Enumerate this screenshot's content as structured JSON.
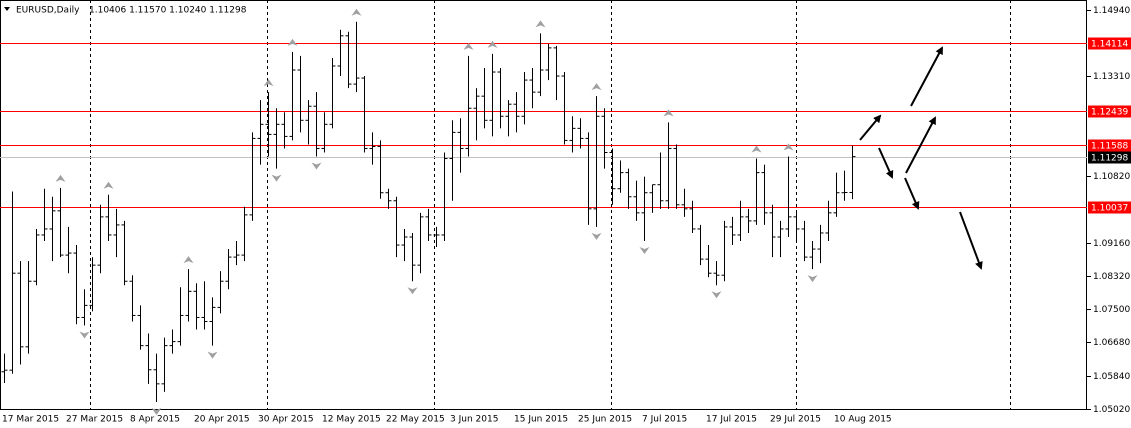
{
  "chart_data": {
    "type": "ohlc",
    "title": "EURUSD,Daily",
    "subtitle": "1.10406 1.11570 1.10240 1.11298",
    "categories": [
      "17 Mar 2015",
      null,
      null,
      null,
      null,
      null,
      null,
      null,
      "27 Mar 2015",
      null,
      null,
      null,
      null,
      null,
      null,
      null,
      "8 Apr 2015",
      null,
      null,
      null,
      null,
      null,
      null,
      null,
      "20 Apr 2015",
      null,
      null,
      null,
      null,
      null,
      null,
      null,
      "30 Apr 2015",
      null,
      null,
      null,
      null,
      null,
      null,
      null,
      "12 May 2015",
      null,
      null,
      null,
      null,
      null,
      null,
      null,
      "22 May 2015",
      null,
      null,
      null,
      null,
      null,
      null,
      null,
      "3 Jun 2015",
      null,
      null,
      null,
      null,
      null,
      null,
      null,
      "15 Jun 2015",
      null,
      null,
      null,
      null,
      null,
      null,
      null,
      "25 Jun 2015",
      null,
      null,
      null,
      null,
      null,
      null,
      null,
      "7 Jul 2015",
      null,
      null,
      null,
      null,
      null,
      null,
      null,
      "17 Jul 2015",
      null,
      null,
      null,
      null,
      null,
      null,
      null,
      "29 Jul 2015",
      null,
      null,
      null,
      null,
      null,
      null,
      null,
      "10 Aug 2015",
      null,
      null
    ],
    "open": [
      1.0595,
      1.0599,
      1.084,
      1.0657,
      1.082,
      1.0935,
      1.095,
      1.0995,
      1.0885,
      1.089,
      1.073,
      1.076,
      1.086,
      1.098,
      1.0935,
      1.096,
      1.082,
      1.0735,
      1.066,
      1.06,
      1.0565,
      1.066,
      1.067,
      1.0735,
      1.0795,
      1.073,
      1.072,
      1.0755,
      1.082,
      1.088,
      1.0885,
      1.0985,
      1.1175,
      1.121,
      1.1185,
      1.121,
      1.118,
      1.1345,
      1.122,
      1.1255,
      1.115,
      1.121,
      1.1355,
      1.143,
      1.131,
      1.1325,
      1.115,
      1.1155,
      1.104,
      1.102,
      1.091,
      1.093,
      1.086,
      1.098,
      1.0935,
      1.0935,
      1.1125,
      1.119,
      1.115,
      1.125,
      1.128,
      1.122,
      1.134,
      1.123,
      1.126,
      1.123,
      1.132,
      1.129,
      1.1345,
      1.14,
      1.133,
      1.117,
      1.12,
      1.1175,
      1.1,
      1.123,
      1.114,
      1.105,
      1.109,
      1.103,
      1.099,
      1.104,
      1.106,
      1.102,
      1.115,
      1.101,
      1.1,
      1.095,
      1.0875,
      1.084,
      1.0835,
      1.0955,
      1.0935,
      1.098,
      1.097,
      1.109,
      1.099,
      1.093,
      1.095,
      1.098,
      1.095,
      1.088,
      1.09,
      1.094,
      1.099,
      1.104,
      1.10406
    ],
    "high": [
      1.064,
      1.1043,
      1.087,
      1.087,
      1.095,
      1.105,
      1.103,
      1.1052,
      1.0955,
      1.091,
      1.08,
      1.088,
      1.101,
      1.1035,
      1.1,
      1.097,
      1.0835,
      1.076,
      1.069,
      1.064,
      1.068,
      1.07,
      1.0805,
      1.085,
      1.0815,
      1.082,
      1.078,
      1.0845,
      1.09,
      1.092,
      1.1005,
      1.119,
      1.127,
      1.129,
      1.125,
      1.124,
      1.139,
      1.138,
      1.127,
      1.129,
      1.124,
      1.1375,
      1.1445,
      1.144,
      1.1465,
      1.133,
      1.119,
      1.117,
      1.105,
      1.103,
      1.095,
      1.094,
      1.099,
      1.1,
      1.0955,
      1.114,
      1.122,
      1.1225,
      1.138,
      1.13,
      1.135,
      1.1385,
      1.135,
      1.127,
      1.129,
      1.134,
      1.135,
      1.1436,
      1.141,
      1.1405,
      1.134,
      1.123,
      1.1225,
      1.119,
      1.128,
      1.125,
      1.115,
      1.112,
      1.11,
      1.107,
      1.108,
      1.106,
      1.114,
      1.1215,
      1.116,
      1.105,
      1.102,
      1.096,
      1.091,
      1.087,
      1.097,
      1.098,
      1.102,
      1.1,
      1.1125,
      1.111,
      1.101,
      1.097,
      1.113,
      1.099,
      1.097,
      1.092,
      1.096,
      1.102,
      1.109,
      1.1095,
      1.1157
    ],
    "low": [
      1.0567,
      1.059,
      1.0613,
      1.064,
      1.081,
      1.092,
      1.087,
      1.088,
      1.084,
      1.0713,
      1.071,
      1.0745,
      1.084,
      1.092,
      1.088,
      1.081,
      1.072,
      1.065,
      1.0565,
      1.052,
      1.0545,
      1.064,
      1.066,
      1.072,
      1.07,
      1.07,
      1.066,
      1.074,
      1.08,
      1.086,
      1.087,
      1.097,
      1.111,
      1.113,
      1.11,
      1.115,
      1.117,
      1.119,
      1.116,
      1.113,
      1.114,
      1.12,
      1.133,
      1.13,
      1.129,
      1.114,
      1.111,
      1.1025,
      1.1,
      1.088,
      1.087,
      1.082,
      1.084,
      1.092,
      1.0905,
      1.092,
      1.102,
      1.109,
      1.113,
      1.117,
      1.12,
      1.118,
      1.12,
      1.118,
      1.119,
      1.121,
      1.125,
      1.128,
      1.132,
      1.127,
      1.116,
      1.114,
      1.115,
      1.096,
      1.0955,
      1.11,
      1.101,
      1.104,
      1.1,
      1.097,
      1.092,
      1.099,
      1.1,
      1.1,
      1.1,
      1.098,
      1.094,
      1.086,
      1.083,
      1.081,
      1.082,
      1.091,
      1.092,
      1.094,
      1.096,
      1.096,
      1.088,
      1.088,
      1.093,
      1.0915,
      1.087,
      1.085,
      1.0865,
      1.092,
      1.098,
      1.102,
      1.1024
    ],
    "close": [
      1.0599,
      1.084,
      1.0657,
      1.082,
      1.0935,
      1.095,
      1.0995,
      1.0885,
      1.089,
      1.073,
      1.076,
      1.086,
      1.098,
      1.0935,
      1.096,
      1.082,
      1.0735,
      1.066,
      1.06,
      1.0565,
      1.066,
      1.067,
      1.0735,
      1.0795,
      1.073,
      1.072,
      1.0755,
      1.082,
      1.088,
      1.0885,
      1.0985,
      1.1175,
      1.121,
      1.1185,
      1.121,
      1.118,
      1.1345,
      1.122,
      1.1255,
      1.115,
      1.121,
      1.1355,
      1.143,
      1.131,
      1.1325,
      1.115,
      1.1155,
      1.104,
      1.102,
      1.091,
      1.093,
      1.086,
      1.098,
      1.0935,
      1.0935,
      1.1125,
      1.119,
      1.115,
      1.125,
      1.128,
      1.122,
      1.134,
      1.123,
      1.126,
      1.123,
      1.132,
      1.129,
      1.1345,
      1.14,
      1.133,
      1.117,
      1.12,
      1.1175,
      1.1,
      1.123,
      1.114,
      1.105,
      1.109,
      1.103,
      1.099,
      1.104,
      1.106,
      1.102,
      1.115,
      1.101,
      1.1,
      1.095,
      1.0875,
      1.084,
      1.0835,
      1.0955,
      1.0935,
      1.098,
      1.097,
      1.109,
      1.099,
      1.093,
      1.095,
      1.098,
      1.095,
      1.088,
      1.09,
      1.094,
      1.099,
      1.104,
      1.10406,
      1.11298
    ],
    "ylim": [
      1.05,
      1.1519
    ],
    "yticks": [
      {
        "value": 1.1494,
        "label": "1.14940"
      },
      {
        "value": 1.1331,
        "label": "1.13310"
      },
      {
        "value": 1.1082,
        "label": "1.10820"
      },
      {
        "value": 1.0916,
        "label": "1.09160"
      },
      {
        "value": 1.0832,
        "label": "1.08320"
      },
      {
        "value": 1.075,
        "label": "1.07500"
      },
      {
        "value": 1.0668,
        "label": "1.06680"
      },
      {
        "value": 1.0584,
        "label": "1.05840"
      },
      {
        "value": 1.0502,
        "label": "1.05020"
      }
    ],
    "levels": [
      1.14114,
      1.12439,
      1.11588,
      1.10037
    ],
    "level_color": "#ff0000",
    "last_price": 1.11298,
    "color": "#000000",
    "fractal_color": "#a0a0a0"
  }
}
